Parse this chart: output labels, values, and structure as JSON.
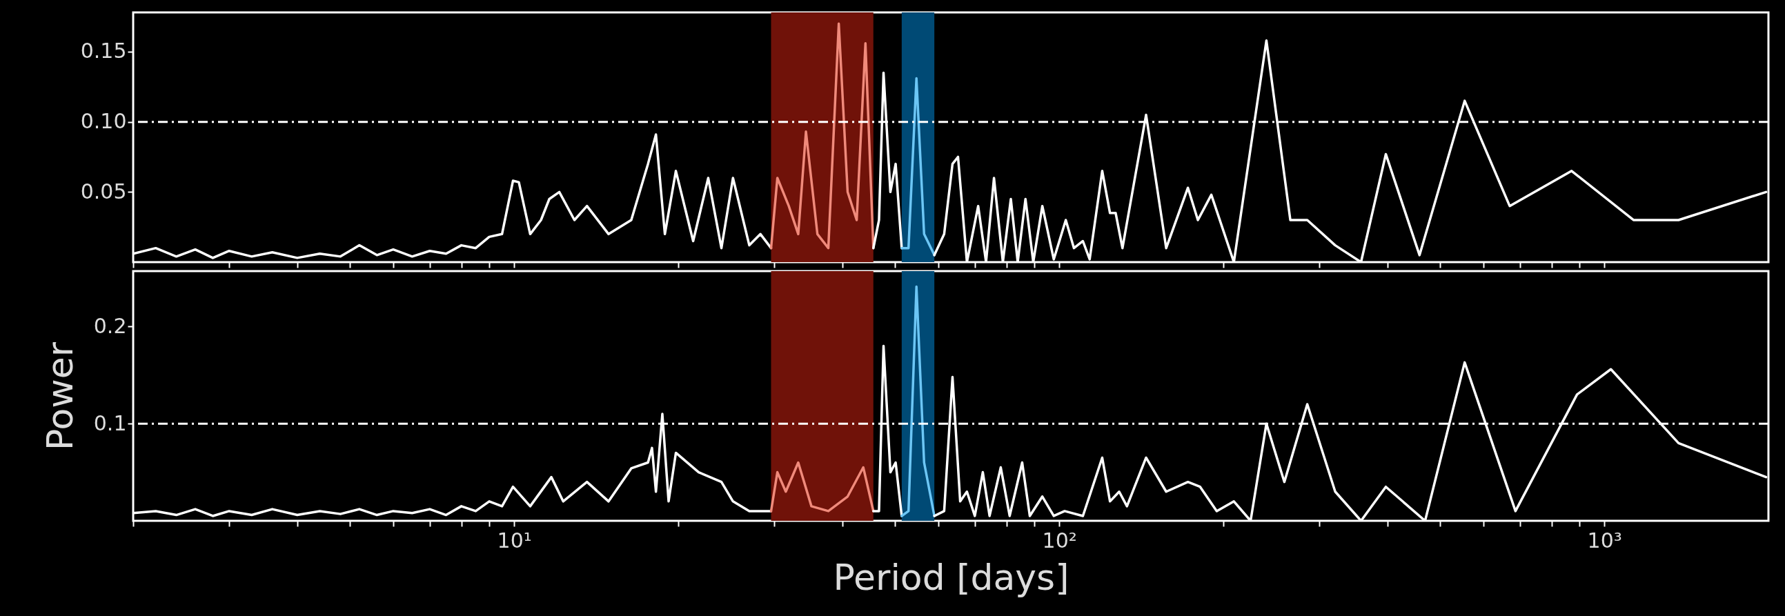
{
  "chart_data": [
    {
      "type": "line",
      "log": "x",
      "tick_labels": "y",
      "xlim": [
        2,
        2000
      ],
      "xticks": [
        {
          "value": 2,
          "label": null
        },
        {
          "value": 3,
          "label": null
        },
        {
          "value": 4,
          "label": null
        },
        {
          "value": 5,
          "label": null
        },
        {
          "value": 6,
          "label": null
        },
        {
          "value": 7,
          "label": null
        },
        {
          "value": 8,
          "label": null
        },
        {
          "value": 9,
          "label": null
        },
        {
          "value": 10,
          "label": null
        },
        {
          "value": 20,
          "label": null
        },
        {
          "value": 30,
          "label": null
        },
        {
          "value": 40,
          "label": null
        },
        {
          "value": 50,
          "label": null
        },
        {
          "value": 60,
          "label": null
        },
        {
          "value": 70,
          "label": null
        },
        {
          "value": 80,
          "label": null
        },
        {
          "value": 90,
          "label": null
        },
        {
          "value": 100,
          "label": null
        },
        {
          "value": 200,
          "label": null
        },
        {
          "value": 300,
          "label": null
        },
        {
          "value": 400,
          "label": null
        },
        {
          "value": 500,
          "label": null
        },
        {
          "value": 600,
          "label": null
        },
        {
          "value": 700,
          "label": null
        },
        {
          "value": 800,
          "label": null
        },
        {
          "value": 900,
          "label": null
        },
        {
          "value": 1000,
          "label": null
        }
      ],
      "ylim": [
        0,
        0.178
      ],
      "yticks": [
        {
          "value": 0.05,
          "label": "0.05"
        },
        {
          "value": 0.1,
          "label": "0.10"
        },
        {
          "value": 0.15,
          "label": "0.15"
        }
      ],
      "bands": [
        {
          "axis": "x",
          "from": 29.6,
          "to": 45.6,
          "color": "#701209"
        },
        {
          "axis": "x",
          "from": 51.4,
          "to": 59.0,
          "color": "#004a75"
        }
      ],
      "ref_lines": [
        {
          "axis": "y",
          "value": 0.1,
          "color": "#ffffff",
          "line_style": "dashed"
        }
      ],
      "series": [
        {
          "color": "#ffffff",
          "x": [
            2.0,
            2.2,
            2.4,
            2.6,
            2.8,
            3.0,
            3.3,
            3.6,
            4.0,
            4.4,
            4.8,
            5.2,
            5.6,
            6.0,
            6.5,
            7.0,
            7.5,
            8.0,
            8.5,
            9.0,
            9.5,
            9.95,
            10.2,
            10.7,
            11.2,
            11.6,
            12.1,
            12.9,
            13.6,
            14.9,
            16.4,
            17.6,
            18.2,
            18.9,
            19.8,
            21.3,
            22.7,
            24.0,
            25.2,
            27.0,
            28.3,
            29.6
          ],
          "values": [
            0.006,
            0.01,
            0.004,
            0.009,
            0.003,
            0.008,
            0.004,
            0.007,
            0.003,
            0.006,
            0.004,
            0.012,
            0.005,
            0.009,
            0.004,
            0.008,
            0.006,
            0.012,
            0.01,
            0.018,
            0.02,
            0.058,
            0.057,
            0.02,
            0.03,
            0.045,
            0.05,
            0.03,
            0.04,
            0.02,
            0.03,
            0.07,
            0.091,
            0.02,
            0.065,
            0.015,
            0.06,
            0.01,
            0.06,
            0.012,
            0.02,
            0.01
          ]
        },
        {
          "color": "#f08a7b",
          "x": [
            29.6,
            30.4,
            31.9,
            33.2,
            34.3,
            36.0,
            37.7,
            39.4,
            40.9,
            42.5,
            44.1,
            45.6
          ],
          "values": [
            0.01,
            0.06,
            0.04,
            0.02,
            0.093,
            0.02,
            0.01,
            0.17,
            0.05,
            0.03,
            0.156,
            0.01
          ]
        },
        {
          "color": "#ffffff",
          "x": [
            45.6,
            46.7,
            47.6,
            49.0,
            50.1,
            51.4
          ],
          "values": [
            0.01,
            0.03,
            0.135,
            0.05,
            0.07,
            0.01
          ]
        },
        {
          "color": "#6cc6f5",
          "x": [
            51.4,
            52.9,
            54.7,
            56.5,
            59.0
          ],
          "values": [
            0.01,
            0.01,
            0.131,
            0.02,
            0.005
          ]
        },
        {
          "color": "#ffffff",
          "x": [
            59.0,
            61.5,
            63.7,
            65.2,
            67.7,
            71.0,
            73.4,
            75.9,
            78.8,
            81.5,
            83.9,
            86.7,
            89.6,
            93.1,
            97.7,
            102.8,
            106.4,
            110.5,
            113.7,
            119.9,
            123.9,
            126.9,
            130.6,
            144.3,
            157.1,
            172.2,
            179.6,
            190.1,
            209.1,
            239.9,
            265.4,
            285.1,
            320.8,
            357.8,
            397.3,
            458.1,
            554.3,
            670.4,
            870.8,
            1131,
            1368,
            1980
          ],
          "values": [
            0.005,
            0.02,
            0.07,
            0.075,
            0.0,
            0.04,
            0.0,
            0.06,
            0.0,
            0.045,
            0.0,
            0.045,
            0.0,
            0.04,
            0.002,
            0.03,
            0.01,
            0.015,
            0.002,
            0.065,
            0.035,
            0.035,
            0.01,
            0.105,
            0.01,
            0.053,
            0.03,
            0.048,
            0.0,
            0.158,
            0.03,
            0.03,
            0.012,
            0.0,
            0.077,
            0.005,
            0.115,
            0.04,
            0.065,
            0.03,
            0.03,
            0.05
          ]
        }
      ]
    },
    {
      "type": "line",
      "log": "x",
      "xlabel": "Period [days]",
      "ylabel": "Power",
      "xlim": [
        2,
        2000
      ],
      "xticks": [
        {
          "value": 2,
          "label": null
        },
        {
          "value": 3,
          "label": null
        },
        {
          "value": 4,
          "label": null
        },
        {
          "value": 5,
          "label": null
        },
        {
          "value": 6,
          "label": null
        },
        {
          "value": 7,
          "label": null
        },
        {
          "value": 8,
          "label": null
        },
        {
          "value": 9,
          "label": null
        },
        {
          "value": 10,
          "label": "10¹"
        },
        {
          "value": 20,
          "label": null
        },
        {
          "value": 30,
          "label": null
        },
        {
          "value": 40,
          "label": null
        },
        {
          "value": 50,
          "label": null
        },
        {
          "value": 60,
          "label": null
        },
        {
          "value": 70,
          "label": null
        },
        {
          "value": 80,
          "label": null
        },
        {
          "value": 90,
          "label": null
        },
        {
          "value": 100,
          "label": "10²"
        },
        {
          "value": 200,
          "label": null
        },
        {
          "value": 300,
          "label": null
        },
        {
          "value": 400,
          "label": null
        },
        {
          "value": 500,
          "label": null
        },
        {
          "value": 600,
          "label": null
        },
        {
          "value": 700,
          "label": null
        },
        {
          "value": 800,
          "label": null
        },
        {
          "value": 900,
          "label": null
        },
        {
          "value": 1000,
          "label": "10³"
        }
      ],
      "ylim": [
        0,
        0.257
      ],
      "yticks": [
        0.1,
        0.2
      ],
      "bands": [
        {
          "axis": "x",
          "from": 29.6,
          "to": 45.6,
          "color": "#701209"
        },
        {
          "axis": "x",
          "from": 51.4,
          "to": 59.0,
          "color": "#004a75"
        }
      ],
      "ref_lines": [
        {
          "axis": "y",
          "value": 0.1,
          "color": "#ffffff",
          "line_style": "dashed"
        }
      ],
      "series": [
        {
          "color": "#ffffff",
          "x": [
            2.0,
            2.2,
            2.4,
            2.6,
            2.8,
            3.0,
            3.3,
            3.6,
            4.0,
            4.4,
            4.8,
            5.2,
            5.6,
            6.0,
            6.5,
            7.0,
            7.5,
            8.0,
            8.5,
            9.0,
            9.5,
            9.95,
            10.7,
            11.7,
            12.3,
            13.6,
            14.9,
            16.4,
            17.6,
            17.9,
            18.2,
            18.7,
            19.2,
            19.8,
            21.8,
            24.0,
            25.2,
            27.0,
            29.6
          ],
          "values": [
            0.008,
            0.01,
            0.006,
            0.012,
            0.005,
            0.01,
            0.006,
            0.012,
            0.006,
            0.01,
            0.007,
            0.012,
            0.006,
            0.01,
            0.008,
            0.012,
            0.006,
            0.015,
            0.01,
            0.02,
            0.015,
            0.035,
            0.015,
            0.045,
            0.02,
            0.04,
            0.02,
            0.054,
            0.06,
            0.075,
            0.03,
            0.11,
            0.02,
            0.07,
            0.05,
            0.04,
            0.02,
            0.01,
            0.01
          ]
        },
        {
          "color": "#f08a7b",
          "x": [
            29.6,
            30.4,
            31.5,
            33.2,
            35.1,
            37.7,
            40.9,
            43.7,
            45.6
          ],
          "values": [
            0.01,
            0.05,
            0.03,
            0.06,
            0.015,
            0.01,
            0.025,
            0.055,
            0.01
          ]
        },
        {
          "color": "#ffffff",
          "x": [
            45.6,
            46.7,
            47.6,
            49.0,
            50.1,
            51.4
          ],
          "values": [
            0.01,
            0.01,
            0.18,
            0.05,
            0.06,
            0.005
          ]
        },
        {
          "color": "#6cc6f5",
          "x": [
            51.4,
            52.9,
            54.7,
            56.5,
            59.0
          ],
          "values": [
            0.005,
            0.01,
            0.241,
            0.06,
            0.005
          ]
        },
        {
          "color": "#ffffff",
          "x": [
            59.0,
            61.5,
            63.7,
            65.8,
            67.7,
            70.0,
            72.4,
            74.5,
            78.1,
            81.1,
            85.5,
            88.3,
            93.1,
            97.7,
            102.3,
            110.5,
            119.9,
            123.9,
            128.8,
            133.1,
            144.3,
            157.1,
            172.2,
            181.3,
            194.5,
            209.1,
            224.4,
            239.9,
            258.8,
            285.1,
            320.8,
            357.8,
            397.3,
            469,
            554.3,
            687,
            891,
            1028,
            1368,
            1980
          ],
          "values": [
            0.005,
            0.01,
            0.148,
            0.02,
            0.03,
            0.005,
            0.05,
            0.005,
            0.055,
            0.005,
            0.06,
            0.005,
            0.025,
            0.005,
            0.01,
            0.005,
            0.065,
            0.02,
            0.03,
            0.015,
            0.065,
            0.03,
            0.04,
            0.035,
            0.01,
            0.02,
            0.0,
            0.1,
            0.04,
            0.12,
            0.03,
            0.0,
            0.035,
            0.0,
            0.163,
            0.01,
            0.13,
            0.156,
            0.08,
            0.045
          ]
        }
      ]
    }
  ]
}
